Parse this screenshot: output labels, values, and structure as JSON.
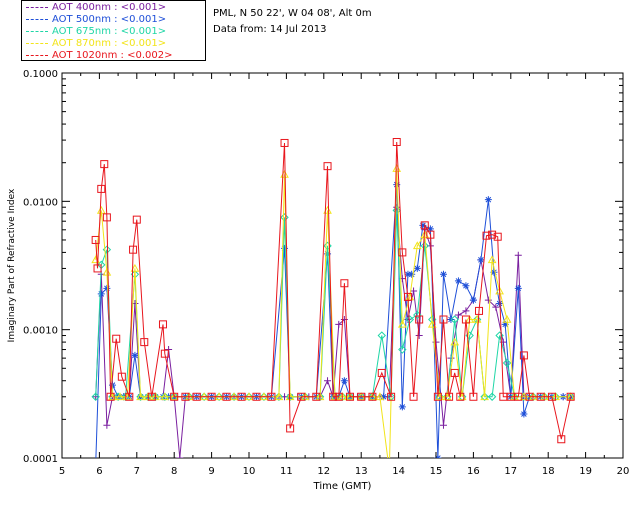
{
  "info": {
    "site": "PML, N 50 22', W 04 08', Alt 0m",
    "date": "Data from: 14 Jul 2013"
  },
  "chart_data": {
    "type": "line",
    "xlabel": "Time (GMT)",
    "ylabel": "Imaginary Part of Refractive Index",
    "xlim": [
      5,
      20
    ],
    "ylim": [
      0.0001,
      0.1
    ],
    "yscale": "log",
    "xticks": [
      "5",
      "6",
      "7",
      "8",
      "9",
      "10",
      "11",
      "12",
      "13",
      "14",
      "15",
      "16",
      "17",
      "18",
      "19",
      "20"
    ],
    "yticks": [
      "0.0001",
      "0.0010",
      "0.0100",
      "0.1000"
    ],
    "legend_position": "top-left",
    "series": [
      {
        "name": "AOT  400nm : <0.001>",
        "color": "#7a1f9f",
        "marker": "plus",
        "x": [
          5.9,
          6.05,
          6.2,
          6.35,
          6.5,
          6.65,
          6.8,
          6.95,
          7.1,
          7.3,
          7.5,
          7.7,
          7.85,
          8.0,
          8.15,
          8.3,
          8.5,
          8.7,
          9.0,
          9.3,
          9.6,
          9.9,
          10.2,
          10.5,
          10.8,
          10.95,
          11.1,
          11.3,
          11.6,
          11.9,
          12.1,
          12.25,
          12.4,
          12.55,
          12.7,
          12.9,
          13.1,
          13.3,
          13.5,
          13.75,
          13.95,
          14.1,
          14.25,
          14.4,
          14.55,
          14.7,
          14.85,
          15.0,
          15.2,
          15.4,
          15.6,
          15.8,
          16.0,
          16.2,
          16.4,
          16.6,
          16.8,
          17.0,
          17.2,
          17.35,
          17.5,
          17.8,
          18.1,
          18.4,
          18.6
        ],
        "values": [
          0.0003,
          0.0027,
          0.00018,
          0.0003,
          0.0003,
          0.0003,
          0.0003,
          0.0016,
          0.0003,
          0.0003,
          0.0003,
          0.0003,
          0.0007,
          0.0003,
          0.0001,
          0.0003,
          0.0003,
          0.0003,
          0.0003,
          0.0003,
          0.0003,
          0.0003,
          0.0003,
          0.0003,
          0.0003,
          0.0003,
          0.0003,
          0.0003,
          0.0003,
          0.0003,
          0.0004,
          0.0003,
          0.0011,
          0.0012,
          0.0003,
          0.0003,
          0.0003,
          0.0003,
          0.0003,
          0.0003,
          0.009,
          0.0025,
          0.0012,
          0.002,
          0.0009,
          0.006,
          0.0045,
          0.0008,
          0.00018,
          0.0006,
          0.0013,
          0.0014,
          0.0017,
          0.0035,
          0.0017,
          0.0015,
          0.0008,
          0.0003,
          0.0038,
          0.0003,
          0.0003,
          0.0003,
          0.0003,
          0.0003,
          0.0003
        ]
      },
      {
        "name": "AOT  500nm : <0.001>",
        "color": "#1e4fd8",
        "marker": "star",
        "x": [
          5.9,
          6.05,
          6.2,
          6.35,
          6.5,
          6.65,
          6.8,
          6.95,
          7.1,
          7.3,
          7.5,
          7.7,
          7.85,
          8.0,
          8.3,
          8.6,
          9.0,
          9.4,
          9.8,
          10.2,
          10.6,
          10.95,
          11.1,
          11.4,
          11.8,
          12.1,
          12.25,
          12.4,
          12.55,
          12.7,
          13.0,
          13.3,
          13.6,
          13.95,
          14.1,
          14.25,
          14.35,
          14.5,
          14.65,
          14.85,
          15.05,
          15.2,
          15.4,
          15.6,
          15.8,
          16.0,
          16.2,
          16.4,
          16.55,
          16.7,
          16.85,
          17.0,
          17.2,
          17.35,
          17.5,
          17.8,
          18.1,
          18.4,
          18.6
        ],
        "values": [
          9e-05,
          0.0019,
          0.0021,
          0.00037,
          0.0003,
          0.0003,
          0.0003,
          0.00063,
          0.0003,
          0.0003,
          0.0003,
          0.0003,
          0.0003,
          0.0003,
          0.0003,
          0.0003,
          0.0003,
          0.0003,
          0.0003,
          0.0003,
          0.0003,
          0.0043,
          0.0003,
          0.0003,
          0.0003,
          0.0039,
          0.0003,
          0.0003,
          0.0004,
          0.0003,
          0.0003,
          0.0003,
          0.0003,
          0.0135,
          0.00025,
          0.0027,
          0.0027,
          0.003,
          0.0065,
          0.0061,
          0.0001,
          0.0027,
          0.0012,
          0.0024,
          0.0022,
          0.0017,
          0.0035,
          0.0103,
          0.0028,
          0.0016,
          0.0011,
          0.0003,
          0.0021,
          0.00022,
          0.0003,
          0.0003,
          0.0003,
          0.0003,
          0.0003
        ]
      },
      {
        "name": "AOT  675nm : <0.001>",
        "color": "#1fd6a6",
        "marker": "diamond",
        "x": [
          5.9,
          6.05,
          6.2,
          6.35,
          6.5,
          6.7,
          6.95,
          7.1,
          7.3,
          7.5,
          7.75,
          8.0,
          8.4,
          8.8,
          9.2,
          9.6,
          10.0,
          10.4,
          10.8,
          10.95,
          11.1,
          11.5,
          11.9,
          12.1,
          12.3,
          12.5,
          12.7,
          13.0,
          13.3,
          13.55,
          13.8,
          13.95,
          14.1,
          14.3,
          14.5,
          14.7,
          14.9,
          15.1,
          15.3,
          15.5,
          15.7,
          15.9,
          16.1,
          16.3,
          16.5,
          16.7,
          16.9,
          17.1,
          17.35,
          17.6,
          17.9,
          18.2,
          18.6
        ],
        "values": [
          0.0003,
          0.0032,
          0.0042,
          0.0003,
          0.0003,
          0.0003,
          0.0027,
          0.0003,
          0.0003,
          0.0003,
          0.0003,
          0.0003,
          0.0003,
          0.0003,
          0.0003,
          0.0003,
          0.0003,
          0.0003,
          0.0003,
          0.0075,
          0.0003,
          0.0003,
          0.0003,
          0.0045,
          0.0003,
          0.0003,
          0.0003,
          0.0003,
          0.0003,
          0.0009,
          0.0003,
          0.0085,
          0.0007,
          0.0012,
          0.0013,
          0.0045,
          0.0012,
          0.0003,
          0.0003,
          0.0012,
          0.0003,
          0.0009,
          0.0012,
          0.0003,
          0.0003,
          0.0009,
          0.00055,
          0.0003,
          0.0003,
          0.0003,
          0.0003,
          0.0003,
          0.0003
        ]
      },
      {
        "name": "AOT  870nm : <0.001>",
        "color": "#f2e41a",
        "marker": "triangle",
        "x": [
          5.9,
          6.05,
          6.2,
          6.35,
          6.55,
          6.75,
          6.95,
          7.1,
          7.3,
          7.5,
          7.75,
          8.0,
          8.4,
          8.8,
          9.2,
          9.6,
          10.0,
          10.4,
          10.8,
          10.95,
          11.1,
          11.5,
          11.9,
          12.1,
          12.3,
          12.5,
          12.7,
          13.0,
          13.3,
          13.5,
          13.75,
          13.95,
          14.1,
          14.3,
          14.5,
          14.7,
          14.9,
          15.1,
          15.3,
          15.5,
          15.7,
          15.9,
          16.1,
          16.3,
          16.5,
          16.7,
          16.9,
          17.1,
          17.35,
          17.6,
          17.9,
          18.2,
          18.6
        ],
        "values": [
          0.0035,
          0.0085,
          0.0028,
          0.0003,
          0.0003,
          0.0003,
          0.003,
          0.0003,
          0.0003,
          0.0003,
          0.0003,
          0.0003,
          0.0003,
          0.0003,
          0.0003,
          0.0003,
          0.0003,
          0.0003,
          0.0003,
          0.0162,
          0.0003,
          0.0003,
          0.0003,
          0.0085,
          0.0003,
          0.0003,
          0.0003,
          0.0003,
          0.0003,
          0.0003,
          8e-05,
          0.018,
          0.0011,
          0.0018,
          0.0045,
          0.0055,
          0.0011,
          0.0003,
          0.0003,
          0.0008,
          0.0003,
          0.0012,
          0.0012,
          0.0003,
          0.0035,
          0.002,
          0.0012,
          0.0003,
          0.0003,
          0.0003,
          0.0003,
          0.0003,
          0.0003
        ]
      },
      {
        "name": "AOT 1020nm : <0.002>",
        "color": "#e8161d",
        "marker": "square",
        "x": [
          5.9,
          5.95,
          6.05,
          6.13,
          6.2,
          6.3,
          6.45,
          6.6,
          6.8,
          6.9,
          7.0,
          7.2,
          7.4,
          7.7,
          7.75,
          8.0,
          8.3,
          8.6,
          9.0,
          9.4,
          9.8,
          10.2,
          10.6,
          10.95,
          11.1,
          11.4,
          11.8,
          12.1,
          12.25,
          12.4,
          12.55,
          12.7,
          13.0,
          13.3,
          13.55,
          13.8,
          13.95,
          14.1,
          14.25,
          14.4,
          14.55,
          14.7,
          14.85,
          15.05,
          15.2,
          15.35,
          15.5,
          15.65,
          15.8,
          16.0,
          16.15,
          16.35,
          16.5,
          16.65,
          16.8,
          17.0,
          17.2,
          17.35,
          17.5,
          17.8,
          18.1,
          18.35,
          18.6
        ],
        "values": [
          0.005,
          0.003,
          0.0125,
          0.0195,
          0.0075,
          0.0003,
          0.00085,
          0.00043,
          0.0003,
          0.0042,
          0.0072,
          0.0008,
          0.0003,
          0.0011,
          0.00065,
          0.0003,
          0.0003,
          0.0003,
          0.0003,
          0.0003,
          0.0003,
          0.0003,
          0.0003,
          0.0285,
          0.00017,
          0.0003,
          0.0003,
          0.0188,
          0.0003,
          0.0003,
          0.0023,
          0.0003,
          0.0003,
          0.0003,
          0.00046,
          0.0003,
          0.029,
          0.004,
          0.0018,
          0.0003,
          0.0012,
          0.0065,
          0.0055,
          0.0003,
          0.0012,
          0.0003,
          0.00046,
          0.0003,
          0.0012,
          0.0003,
          0.0014,
          0.0054,
          0.0055,
          0.0053,
          0.0003,
          0.0003,
          0.0003,
          0.00063,
          0.0003,
          0.0003,
          0.0003,
          0.00014,
          0.0003
        ]
      }
    ]
  }
}
